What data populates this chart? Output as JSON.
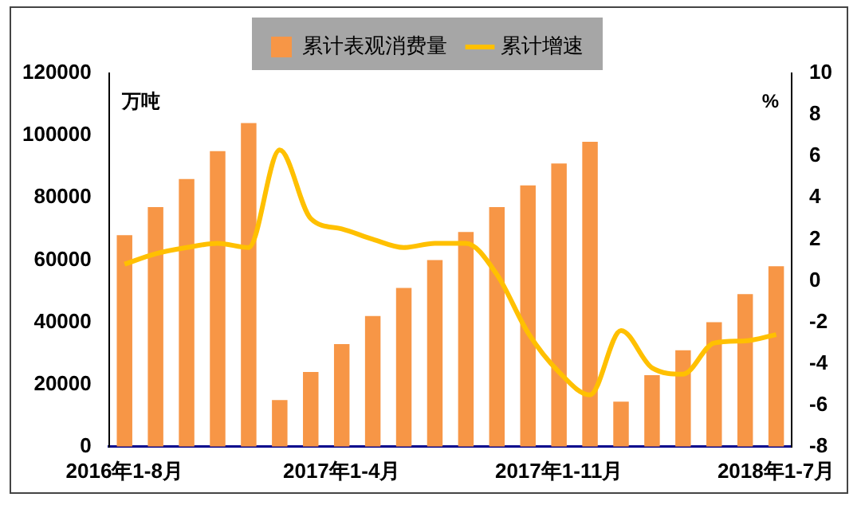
{
  "chart_data": {
    "type": "bar",
    "ylabel": "万吨",
    "y2label": "%",
    "categories": [
      "2016年1-8月",
      null,
      null,
      null,
      null,
      null,
      null,
      "2017年1-4月",
      null,
      null,
      null,
      null,
      null,
      null,
      "2017年1-11月",
      null,
      null,
      null,
      null,
      null,
      null,
      "2018年1-7月"
    ],
    "series": [
      {
        "name": "累计表观消费量",
        "color": "#f79646",
        "values": [
          68000,
          77000,
          86000,
          95000,
          104000,
          15000,
          24000,
          33000,
          42000,
          51000,
          60000,
          69000,
          77000,
          84000,
          91000,
          98000,
          14500,
          23000,
          31000,
          40000,
          49000,
          58000
        ]
      },
      {
        "name": "累计增速",
        "type": "line",
        "axis": "y2",
        "color": "#ffc000",
        "values": [
          0.8,
          1.3,
          1.6,
          1.8,
          1.6,
          6.3,
          3.0,
          2.5,
          2.0,
          1.6,
          1.8,
          1.8,
          0.3,
          -2.5,
          -4.4,
          -5.5,
          -2.4,
          -4.2,
          -4.5,
          -3.0,
          -2.9,
          -2.6
        ]
      }
    ],
    "ylim": [
      0,
      120000
    ],
    "yticks": [
      0,
      20000,
      40000,
      60000,
      80000,
      100000,
      120000
    ],
    "y2lim": [
      -8,
      10
    ],
    "y2ticks": [
      -8,
      -6,
      -4,
      -2,
      0,
      2,
      4,
      6,
      8,
      10
    ],
    "legend": "top",
    "grid": false,
    "marker": "none"
  }
}
